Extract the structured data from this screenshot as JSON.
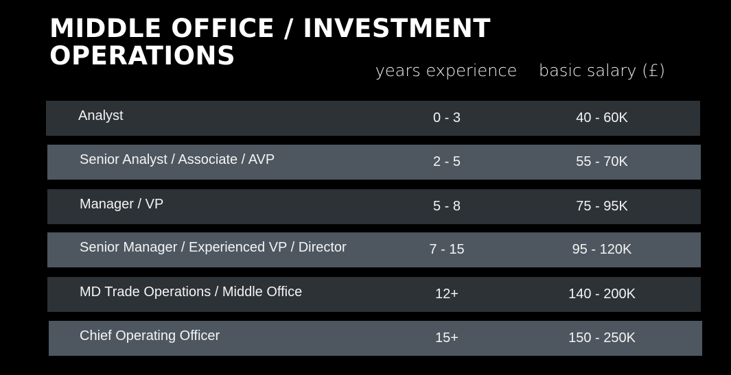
{
  "title": {
    "line1": "MIDDLE OFFICE / INVESTMENT",
    "line2": "OPERATIONS"
  },
  "headers": {
    "years": "years experience",
    "salary": "basic salary (£)"
  },
  "rows": [
    {
      "role": "Analyst",
      "years": "0 - 3",
      "salary": "40 - 60K"
    },
    {
      "role": "Senior Analyst / Associate / AVP",
      "years": "2 - 5",
      "salary": "55 - 70K"
    },
    {
      "role": "Manager / VP",
      "years": "5 - 8",
      "salary": "75 - 95K"
    },
    {
      "role": "Senior Manager / Experienced VP / Director",
      "years": "7 - 15",
      "salary": "95 - 120K"
    },
    {
      "role": "MD Trade Operations / Middle Office",
      "years": "12+",
      "salary": "140 - 200K"
    },
    {
      "role": "Chief Operating Officer",
      "years": "15+",
      "salary": "150 - 250K"
    }
  ],
  "colors": {
    "background": "#000000",
    "row_dark": "#2d3237",
    "row_light": "#4e5760",
    "text": "#ffffff"
  }
}
